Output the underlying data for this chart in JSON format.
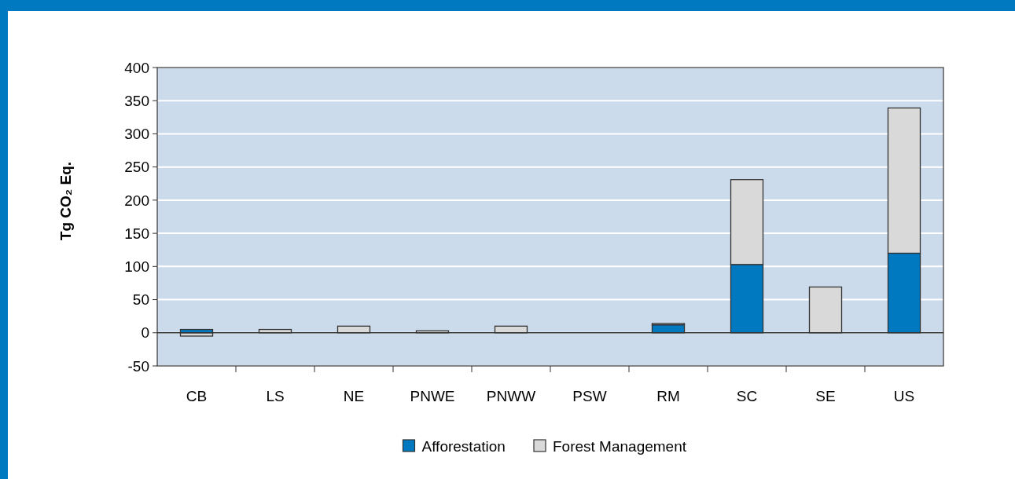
{
  "chart_data": {
    "type": "bar",
    "ylabel": "Tg CO₂ Eq.",
    "categories": [
      "CB",
      "LS",
      "NE",
      "PNWE",
      "PNWW",
      "PSW",
      "RM",
      "SC",
      "SE",
      "US"
    ],
    "series": [
      {
        "name": "Afforestation",
        "color": "#0079c1",
        "values": [
          5,
          0,
          0,
          0,
          0,
          0,
          12,
          103,
          0,
          120
        ]
      },
      {
        "name": "Forest Management",
        "color": "#d9d9d9",
        "values": [
          -5,
          5,
          10,
          3,
          10,
          0,
          2,
          128,
          69,
          219
        ]
      }
    ],
    "stacked": true,
    "ylim": [
      -50,
      400
    ],
    "yticks": [
      -50,
      0,
      50,
      100,
      150,
      200,
      250,
      300,
      350,
      400
    ],
    "grid": "y",
    "legend": "bottom"
  }
}
